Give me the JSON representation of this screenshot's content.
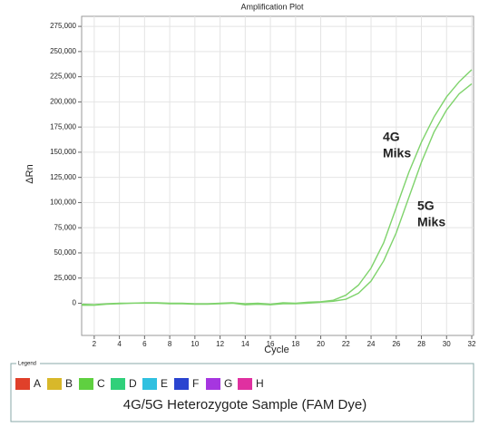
{
  "chart_data": {
    "type": "line",
    "title": "Amplification Plot",
    "x_label": "Cycle",
    "y_label": "ΔRn",
    "x": [
      1,
      2,
      3,
      4,
      5,
      6,
      7,
      8,
      9,
      10,
      11,
      12,
      13,
      14,
      15,
      16,
      17,
      18,
      19,
      20,
      21,
      22,
      23,
      24,
      25,
      26,
      27,
      28,
      29,
      30,
      31,
      32
    ],
    "series": [
      {
        "color": "#7fd36c",
        "values": [
          -1000,
          -1500,
          -500,
          0,
          0,
          500,
          500,
          0,
          0,
          -500,
          -500,
          0,
          500,
          -500,
          0,
          -1000,
          500,
          0,
          1000,
          1500,
          3000,
          8000,
          18000,
          35000,
          60000,
          95000,
          130000,
          160000,
          185000,
          205000,
          220000,
          232000
        ]
      },
      {
        "color": "#7fd36c",
        "values": [
          -2000,
          -2000,
          -1000,
          -500,
          0,
          0,
          0,
          -500,
          -500,
          -1000,
          -1000,
          -500,
          0,
          -1500,
          -1000,
          -1500,
          -500,
          -500,
          0,
          1000,
          2000,
          4000,
          10000,
          22000,
          42000,
          70000,
          105000,
          140000,
          170000,
          192000,
          208000,
          218000
        ]
      }
    ],
    "annotations": [
      {
        "lines": [
          "4G",
          "Miks"
        ]
      },
      {
        "lines": [
          "5G",
          "Miks"
        ]
      }
    ],
    "xlim": [
      1,
      32
    ],
    "ylim": [
      -32000,
      285000
    ],
    "xticks": [
      2,
      4,
      6,
      8,
      10,
      12,
      14,
      16,
      18,
      20,
      22,
      24,
      26,
      28,
      30,
      32
    ],
    "yticks": [
      0,
      {
        "value": 25000,
        "label": "25,000"
      },
      {
        "value": 50000,
        "label": "50,000"
      },
      {
        "value": 75000,
        "label": "75,000"
      },
      {
        "value": 100000,
        "label": "100,000"
      },
      {
        "value": 125000,
        "label": "125,000"
      },
      {
        "value": 150000,
        "label": "150,000"
      },
      {
        "value": 175000,
        "label": "175,000"
      },
      {
        "value": 200000,
        "label": "200,000"
      },
      {
        "value": 225000,
        "label": "225,000"
      },
      {
        "value": 250000,
        "label": "250,000"
      },
      {
        "value": 275000,
        "label": "275,000"
      }
    ],
    "grid": true,
    "legend": {
      "title": "Legend",
      "items": [
        {
          "label": "A",
          "color": "#e0402a"
        },
        {
          "label": "B",
          "color": "#d8b82a"
        },
        {
          "label": "C",
          "color": "#5fd040"
        },
        {
          "label": "D",
          "color": "#30d07a"
        },
        {
          "label": "E",
          "color": "#30c0e0"
        },
        {
          "label": "F",
          "color": "#2a44d0"
        },
        {
          "label": "G",
          "color": "#a636e0"
        },
        {
          "label": "H",
          "color": "#e030a0"
        }
      ],
      "caption": "4G/5G Heterozygote Sample (FAM Dye)"
    }
  }
}
